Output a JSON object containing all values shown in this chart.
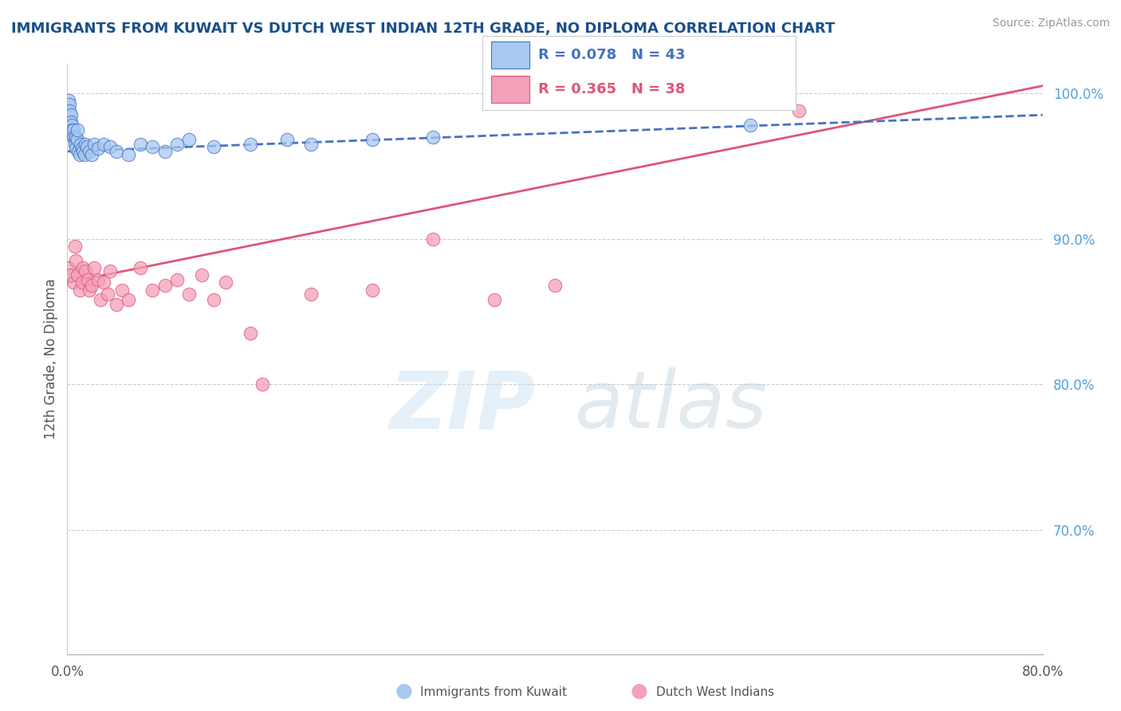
{
  "title": "IMMIGRANTS FROM KUWAIT VS DUTCH WEST INDIAN 12TH GRADE, NO DIPLOMA CORRELATION CHART",
  "source": "Source: ZipAtlas.com",
  "ylabel": "12th Grade, No Diploma",
  "xlim": [
    0.0,
    0.8
  ],
  "ylim": [
    0.615,
    1.02
  ],
  "yticks": [
    0.7,
    0.8,
    0.9,
    1.0
  ],
  "ytick_labels": [
    "70.0%",
    "80.0%",
    "90.0%",
    "100.0%"
  ],
  "legend_label1": "Immigrants from Kuwait",
  "legend_label2": "Dutch West Indians",
  "r1": 0.078,
  "n1": 43,
  "r2": 0.365,
  "n2": 38,
  "color1": "#a8c8f0",
  "color2": "#f4a0b8",
  "trendline1_color": "#4472c4",
  "trendline2_color": "#e05575",
  "background_color": "#ffffff",
  "title_color": "#1a4f8a",
  "source_color": "#999999",
  "kuwait_x": [
    0.001,
    0.002,
    0.002,
    0.003,
    0.003,
    0.004,
    0.004,
    0.005,
    0.005,
    0.006,
    0.006,
    0.007,
    0.007,
    0.008,
    0.008,
    0.009,
    0.01,
    0.011,
    0.012,
    0.013,
    0.014,
    0.015,
    0.016,
    0.018,
    0.02,
    0.022,
    0.025,
    0.03,
    0.035,
    0.04,
    0.05,
    0.06,
    0.07,
    0.08,
    0.09,
    0.1,
    0.12,
    0.15,
    0.18,
    0.2,
    0.25,
    0.3,
    0.56
  ],
  "kuwait_y": [
    0.995,
    0.992,
    0.988,
    0.985,
    0.98,
    0.978,
    0.975,
    0.975,
    0.97,
    0.968,
    0.965,
    0.962,
    0.97,
    0.968,
    0.975,
    0.96,
    0.958,
    0.965,
    0.962,
    0.96,
    0.958,
    0.965,
    0.963,
    0.96,
    0.958,
    0.965,
    0.962,
    0.965,
    0.963,
    0.96,
    0.958,
    0.965,
    0.963,
    0.96,
    0.965,
    0.968,
    0.963,
    0.965,
    0.968,
    0.965,
    0.968,
    0.97,
    0.978
  ],
  "dutch_x": [
    0.001,
    0.003,
    0.005,
    0.006,
    0.007,
    0.008,
    0.01,
    0.012,
    0.013,
    0.015,
    0.017,
    0.018,
    0.02,
    0.022,
    0.025,
    0.027,
    0.03,
    0.033,
    0.035,
    0.04,
    0.045,
    0.05,
    0.06,
    0.07,
    0.08,
    0.09,
    0.1,
    0.12,
    0.13,
    0.15,
    0.2,
    0.25,
    0.3,
    0.35,
    0.4,
    0.6,
    0.11,
    0.16
  ],
  "dutch_y": [
    0.88,
    0.875,
    0.87,
    0.895,
    0.885,
    0.875,
    0.865,
    0.87,
    0.88,
    0.878,
    0.872,
    0.865,
    0.868,
    0.88,
    0.872,
    0.858,
    0.87,
    0.862,
    0.878,
    0.855,
    0.865,
    0.858,
    0.88,
    0.865,
    0.868,
    0.872,
    0.862,
    0.858,
    0.87,
    0.835,
    0.862,
    0.865,
    0.9,
    0.858,
    0.868,
    0.988,
    0.875,
    0.8
  ],
  "watermark_zip": "ZIP",
  "watermark_atlas": "atlas"
}
